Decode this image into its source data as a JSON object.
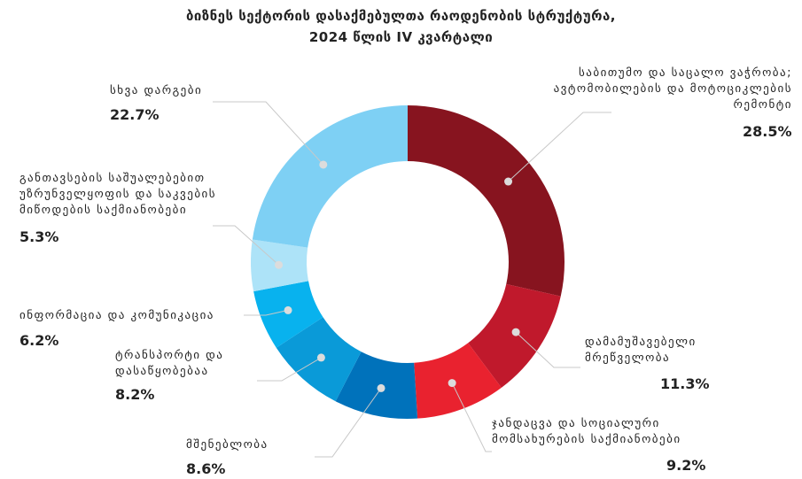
{
  "title_line1": "ბიზნეს სექტორის დასაქმებულთა რაოდენობის სტრუქტურა,",
  "title_line2": "2024 წლის  IV კვარტალი",
  "chart_data": {
    "type": "pie",
    "donut": true,
    "categories": [
      "საბითუმო და საცალო ვაჭრობა; ავტომობილების და მოტოციკლების რემონტი",
      "დამამუშავებელი მრეწველობა",
      "ჯანდაცვა და სოციალური მომსახურების საქმიანობები",
      "მშენებლობა",
      "ტრანსპორტი და დასაწყობებაა",
      "ინფორმაცია და კომუნიკაცია",
      "განთავსების საშუალებებით უზრუნველყოფის და საკვების მიწოდების საქმიანობები",
      "სხვა დარგები"
    ],
    "values": [
      28.5,
      11.3,
      9.2,
      8.6,
      8.2,
      6.2,
      5.3,
      22.7
    ],
    "value_labels": [
      "28.5%",
      "11.3%",
      "9.2%",
      "8.6%",
      "8.2%",
      "6.2%",
      "5.3%",
      "22.7%"
    ],
    "colors": [
      "#87141f",
      "#c0192c",
      "#e9222f",
      "#0072bb",
      "#0a9ad8",
      "#08b2ee",
      "#ade3f8",
      "#7ed0f4"
    ]
  }
}
